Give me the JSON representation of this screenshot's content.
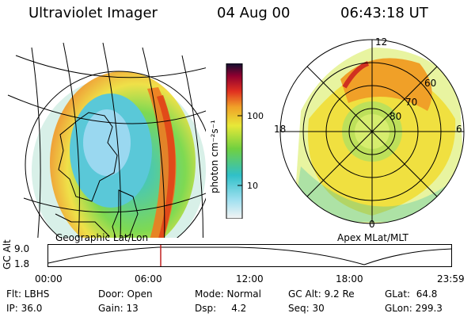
{
  "header": {
    "title": "Ultraviolet Imager",
    "date": "04 Aug 00",
    "time": "06:43:18 UT"
  },
  "colorbar": {
    "unit_label": "photon cm⁻²s⁻¹",
    "ticks": [
      "100",
      "10"
    ]
  },
  "polar_plot": {
    "labels": {
      "top": "12",
      "bottom": "0",
      "left": "18",
      "right": "6"
    },
    "lat_labels": [
      "60",
      "70",
      "80"
    ]
  },
  "panel_captions": {
    "left": "Geographic Lat/Lon",
    "right": "Apex MLat/MLT"
  },
  "timeline": {
    "ylabel": "GC Alt",
    "y_ticks": [
      "9.0",
      "1.8"
    ],
    "x_ticks": [
      "00:00",
      "06:00",
      "12:00",
      "18:00",
      "23:59"
    ],
    "current_time": "06:43"
  },
  "info": [
    [
      "Flt: LBHS",
      "Door: Open",
      "Mode: Normal",
      "GC Alt: 9.2 Re",
      "GLat:  64.8"
    ],
    [
      "IP: 36.0",
      "Gain: 13",
      "Dsp:     4.2",
      "Seq: 30",
      "GLon: 299.3"
    ]
  ]
}
